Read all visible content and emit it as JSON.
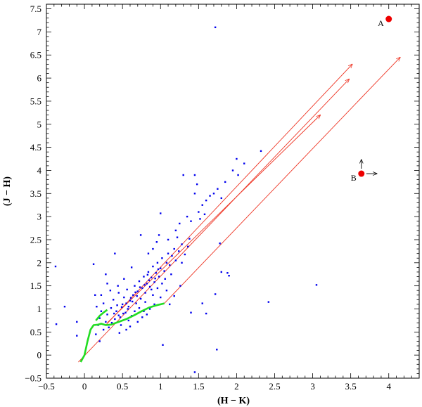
{
  "chart_data": {
    "type": "scatter",
    "title": "",
    "xlabel": "(H − K)",
    "ylabel": "(J − H)",
    "xlim": [
      -0.5,
      4.4
    ],
    "ylim": [
      -0.5,
      7.6
    ],
    "xticks_major": [
      -0.5,
      0,
      0.5,
      1,
      1.5,
      2,
      2.5,
      3,
      3.5,
      4
    ],
    "xtick_labels": [
      "−0.5",
      "0",
      "0.5",
      "1",
      "1.5",
      "2",
      "2.5",
      "3",
      "3.5",
      "4"
    ],
    "yticks_major": [
      -0.5,
      0,
      0.5,
      1,
      1.5,
      2,
      2.5,
      3,
      3.5,
      4,
      4.5,
      5,
      5.5,
      6,
      6.5,
      7,
      7.5
    ],
    "ytick_labels": [
      "−0.5",
      "0",
      "0.5",
      "1",
      "1.5",
      "2",
      "2.5",
      "3",
      "3.5",
      "4",
      "4.5",
      "5",
      "5.5",
      "6",
      "6.5",
      "7",
      "7.5"
    ],
    "minor_step": 0.1,
    "grid": false,
    "colors": {
      "points": "#0000ee",
      "locus": "#22dd22",
      "reddening": "#ee3322",
      "sources": "#ee0000"
    },
    "scatter_points": [
      [
        -0.38,
        1.92
      ],
      [
        -0.37,
        0.67
      ],
      [
        -0.26,
        1.05
      ],
      [
        -0.1,
        0.72
      ],
      [
        -0.1,
        0.42
      ],
      [
        0.12,
        1.97
      ],
      [
        0.2,
        0.8
      ],
      [
        0.22,
        0.95
      ],
      [
        0.25,
        1.12
      ],
      [
        0.28,
        0.72
      ],
      [
        0.3,
        0.88
      ],
      [
        0.32,
        0.6
      ],
      [
        0.35,
        1.02
      ],
      [
        0.38,
        1.2
      ],
      [
        0.4,
        0.78
      ],
      [
        0.42,
        0.95
      ],
      [
        0.45,
        1.35
      ],
      [
        0.47,
        0.82
      ],
      [
        0.5,
        1.1
      ],
      [
        0.52,
        1.25
      ],
      [
        0.54,
        0.92
      ],
      [
        0.56,
        1.42
      ],
      [
        0.58,
        1.05
      ],
      [
        0.6,
        1.18
      ],
      [
        0.62,
        0.85
      ],
      [
        0.64,
        1.3
      ],
      [
        0.66,
        1.5
      ],
      [
        0.68,
        1.12
      ],
      [
        0.7,
        1.38
      ],
      [
        0.72,
        1.6
      ],
      [
        0.74,
        1.22
      ],
      [
        0.76,
        1.45
      ],
      [
        0.78,
        1.7
      ],
      [
        0.8,
        1.35
      ],
      [
        0.82,
        1.55
      ],
      [
        0.84,
        1.8
      ],
      [
        0.86,
        1.48
      ],
      [
        0.88,
        1.68
      ],
      [
        0.9,
        1.92
      ],
      [
        0.92,
        1.58
      ],
      [
        0.94,
        1.78
      ],
      [
        0.96,
        2.0
      ],
      [
        0.98,
        1.7
      ],
      [
        1.0,
        1.88
      ],
      [
        1.02,
        2.1
      ],
      [
        1.05,
        1.82
      ],
      [
        1.08,
        2.0
      ],
      [
        1.1,
        2.2
      ],
      [
        1.12,
        1.95
      ],
      [
        1.15,
        2.15
      ],
      [
        1.18,
        2.3
      ],
      [
        1.2,
        2.05
      ],
      [
        1.24,
        2.25
      ],
      [
        1.28,
        2.4
      ],
      [
        1.32,
        2.18
      ],
      [
        1.36,
        2.35
      ],
      [
        0.52,
        1.65
      ],
      [
        0.48,
        0.65
      ],
      [
        0.44,
        1.5
      ],
      [
        0.36,
        0.7
      ],
      [
        0.62,
        1.9
      ],
      [
        0.72,
        1.02
      ],
      [
        0.8,
        1.15
      ],
      [
        0.9,
        1.3
      ],
      [
        0.96,
        1.45
      ],
      [
        1.02,
        1.55
      ],
      [
        1.06,
        1.65
      ],
      [
        1.14,
        1.75
      ],
      [
        0.58,
        0.75
      ],
      [
        0.66,
        0.95
      ],
      [
        0.84,
        2.2
      ],
      [
        0.9,
        2.3
      ],
      [
        0.95,
        2.45
      ],
      [
        1.0,
        1.25
      ],
      [
        1.08,
        1.4
      ],
      [
        0.4,
        2.2
      ],
      [
        0.55,
        0.55
      ],
      [
        0.3,
        1.55
      ],
      [
        0.25,
        0.55
      ],
      [
        0.18,
        0.65
      ],
      [
        0.34,
        1.4
      ],
      [
        0.22,
        1.3
      ],
      [
        0.28,
        1.75
      ],
      [
        0.74,
        2.6
      ],
      [
        0.78,
        0.95
      ],
      [
        0.86,
        1.0
      ],
      [
        0.92,
        1.1
      ],
      [
        0.98,
        2.6
      ],
      [
        1.1,
        2.5
      ],
      [
        1.2,
        2.7
      ],
      [
        1.3,
        3.9
      ],
      [
        1.45,
        3.9
      ],
      [
        1.48,
        3.7
      ],
      [
        1.5,
        3.1
      ],
      [
        1.55,
        3.25
      ],
      [
        1.6,
        3.35
      ],
      [
        1.65,
        3.45
      ],
      [
        1.45,
        3.5
      ],
      [
        1.52,
        2.95
      ],
      [
        1.58,
        3.05
      ],
      [
        1.4,
        2.9
      ],
      [
        1.35,
        3.0
      ],
      [
        1.25,
        2.85
      ],
      [
        1.22,
        2.55
      ],
      [
        1.7,
        3.5
      ],
      [
        1.75,
        3.6
      ],
      [
        1.8,
        3.4
      ],
      [
        1.85,
        3.75
      ],
      [
        1.95,
        4.0
      ],
      [
        2.0,
        4.25
      ],
      [
        2.02,
        3.9
      ],
      [
        2.1,
        4.15
      ],
      [
        2.32,
        4.42
      ],
      [
        1.28,
        2.0
      ],
      [
        1.38,
        2.52
      ],
      [
        1.0,
        3.07
      ],
      [
        1.72,
        7.1
      ],
      [
        1.78,
        2.42
      ],
      [
        1.8,
        1.8
      ],
      [
        1.88,
        1.78
      ],
      [
        1.9,
        1.72
      ],
      [
        1.6,
        0.9
      ],
      [
        1.72,
        1.32
      ],
      [
        1.74,
        0.12
      ],
      [
        1.03,
        0.22
      ],
      [
        1.45,
        -0.37
      ],
      [
        2.42,
        1.15
      ],
      [
        3.05,
        1.52
      ],
      [
        1.55,
        1.12
      ],
      [
        1.4,
        0.92
      ],
      [
        0.2,
        0.3
      ],
      [
        0.15,
        0.45
      ],
      [
        0.46,
        0.48
      ],
      [
        0.6,
        0.62
      ],
      [
        0.7,
        0.72
      ],
      [
        0.76,
        0.82
      ],
      [
        0.82,
        0.88
      ],
      [
        1.12,
        1.1
      ],
      [
        1.18,
        1.28
      ],
      [
        1.26,
        1.5
      ],
      [
        0.16,
        1.05
      ],
      [
        0.14,
        1.3
      ],
      [
        0.85,
        1.62
      ],
      [
        0.88,
        1.42
      ],
      [
        0.93,
        1.66
      ],
      [
        0.97,
        1.86
      ],
      [
        0.79,
        1.52
      ],
      [
        0.83,
        1.74
      ],
      [
        0.69,
        1.28
      ],
      [
        0.73,
        1.47
      ],
      [
        0.63,
        1.16
      ],
      [
        0.67,
        1.36
      ],
      [
        0.57,
        1.0
      ],
      [
        0.61,
        1.24
      ],
      [
        0.51,
        0.9
      ],
      [
        0.55,
        1.12
      ],
      [
        0.45,
        0.86
      ],
      [
        0.49,
        1.04
      ],
      [
        0.39,
        0.9
      ],
      [
        0.43,
        1.08
      ]
    ],
    "intrinsic_locus": [
      [
        -0.05,
        -0.15
      ],
      [
        0.0,
        0.0
      ],
      [
        0.04,
        0.3
      ],
      [
        0.08,
        0.55
      ],
      [
        0.12,
        0.65
      ],
      [
        0.18,
        0.66
      ],
      [
        0.22,
        0.68
      ],
      [
        0.28,
        0.65
      ],
      [
        0.35,
        0.66
      ],
      [
        0.45,
        0.72
      ],
      [
        0.55,
        0.78
      ],
      [
        0.65,
        0.86
      ],
      [
        0.75,
        0.95
      ],
      [
        0.85,
        1.03
      ],
      [
        0.95,
        1.08
      ],
      [
        1.05,
        1.12
      ]
    ],
    "giant_branch": [
      [
        0.15,
        0.75
      ],
      [
        0.2,
        0.85
      ],
      [
        0.25,
        0.92
      ],
      [
        0.3,
        0.98
      ]
    ],
    "reddening_vectors": [
      {
        "start": [
          -0.08,
          -0.15
        ],
        "end": [
          3.48,
          5.98
        ]
      },
      {
        "start": [
          0.28,
          0.65
        ],
        "end": [
          3.52,
          6.3
        ]
      },
      {
        "start": [
          0.3,
          0.7
        ],
        "end": [
          3.1,
          5.2
        ]
      },
      {
        "start": [
          1.05,
          1.12
        ],
        "end": [
          4.15,
          6.45
        ]
      }
    ],
    "sources": [
      {
        "name": "A",
        "x": 4.0,
        "y": 7.28,
        "arrows": []
      },
      {
        "name": "B",
        "x": 3.64,
        "y": 3.93,
        "arrows": [
          "up",
          "right"
        ]
      }
    ]
  }
}
